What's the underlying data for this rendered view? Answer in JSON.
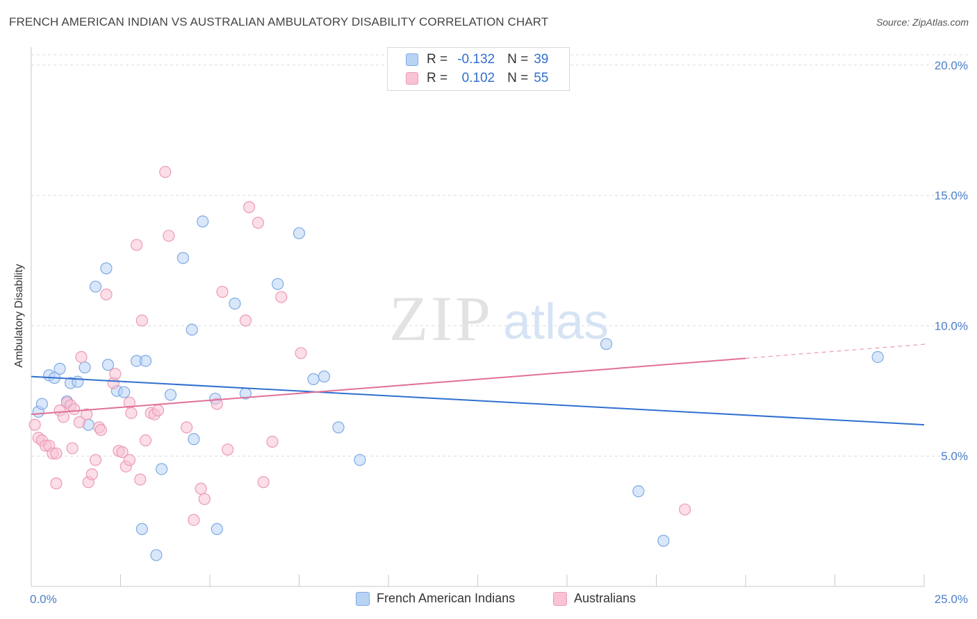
{
  "title": "FRENCH AMERICAN INDIAN VS AUSTRALIAN AMBULATORY DISABILITY CORRELATION CHART",
  "source": "Source: ZipAtlas.com",
  "watermark": {
    "zip": "ZIP",
    "atlas": "atlas"
  },
  "colors": {
    "blue": "#2f6fd0",
    "blue_fill": "#b9d3f5",
    "blue_stroke": "#7ea9e3",
    "pink": "#e07096",
    "pink_fill": "#f8c3d3",
    "pink_stroke": "#ec9ab4",
    "grid": "#dcdcdc",
    "axis_label": "#4a7fc7"
  },
  "legend": {
    "rows": [
      {
        "r_label": "R =",
        "r_value": "-0.132",
        "n_label": "N =",
        "n_value": "39"
      },
      {
        "r_label": "R =",
        "r_value": "0.102",
        "n_label": "N =",
        "n_value": "55"
      }
    ]
  },
  "bottom_legend": {
    "blue": "French American Indians",
    "pink": "Australians"
  },
  "chart_data": {
    "type": "scatter",
    "title": "FRENCH AMERICAN INDIAN VS AUSTRALIAN AMBULATORY DISABILITY CORRELATION CHART",
    "xlabel": "",
    "ylabel": "Ambulatory Disability",
    "xlim": [
      0,
      25
    ],
    "ylim": [
      0,
      20.5
    ],
    "x_tick_labels": [
      "0.0%",
      "25.0%"
    ],
    "y_ticks": [
      5,
      10,
      15,
      20
    ],
    "y_tick_labels": [
      "5.0%",
      "10.0%",
      "15.0%",
      "20.0%"
    ],
    "grid": true,
    "legend_position": "top-center",
    "series": [
      {
        "name": "French American Indians",
        "color": "#2f6fd0",
        "R": -0.132,
        "N": 39,
        "trend": {
          "x": [
            0,
            25
          ],
          "y": [
            8.05,
            6.2
          ]
        },
        "points": [
          [
            0.2,
            6.7
          ],
          [
            0.3,
            7.0
          ],
          [
            0.5,
            8.1
          ],
          [
            0.65,
            8.0
          ],
          [
            0.8,
            8.35
          ],
          [
            1.0,
            7.1
          ],
          [
            1.1,
            7.8
          ],
          [
            1.3,
            7.85
          ],
          [
            1.5,
            8.4
          ],
          [
            1.6,
            6.2
          ],
          [
            1.8,
            11.5
          ],
          [
            2.1,
            12.2
          ],
          [
            2.15,
            8.5
          ],
          [
            2.4,
            7.5
          ],
          [
            2.6,
            7.45
          ],
          [
            2.95,
            8.65
          ],
          [
            3.1,
            2.2
          ],
          [
            3.2,
            8.65
          ],
          [
            3.5,
            1.2
          ],
          [
            3.65,
            4.5
          ],
          [
            3.9,
            7.35
          ],
          [
            4.25,
            12.6
          ],
          [
            4.5,
            9.85
          ],
          [
            4.55,
            5.65
          ],
          [
            4.8,
            14.0
          ],
          [
            5.2,
            2.2
          ],
          [
            5.15,
            7.2
          ],
          [
            5.7,
            10.85
          ],
          [
            6.0,
            7.4
          ],
          [
            6.9,
            11.6
          ],
          [
            7.5,
            13.55
          ],
          [
            7.9,
            7.95
          ],
          [
            8.2,
            8.05
          ],
          [
            8.6,
            6.1
          ],
          [
            9.2,
            4.85
          ],
          [
            16.1,
            9.3
          ],
          [
            17.0,
            3.65
          ],
          [
            17.7,
            1.75
          ],
          [
            23.7,
            8.8
          ]
        ]
      },
      {
        "name": "Australians",
        "color": "#e07096",
        "R": 0.102,
        "N": 55,
        "trend": {
          "x": [
            0,
            20
          ],
          "y": [
            6.6,
            8.75
          ]
        },
        "trend_dashed": {
          "x": [
            20,
            25
          ],
          "y": [
            8.75,
            9.3
          ]
        },
        "points": [
          [
            0.1,
            6.2
          ],
          [
            0.2,
            5.7
          ],
          [
            0.3,
            5.6
          ],
          [
            0.4,
            5.4
          ],
          [
            0.5,
            5.4
          ],
          [
            0.6,
            5.1
          ],
          [
            0.7,
            5.1
          ],
          [
            0.7,
            3.95
          ],
          [
            0.8,
            6.75
          ],
          [
            0.9,
            6.5
          ],
          [
            1.0,
            7.05
          ],
          [
            1.1,
            6.95
          ],
          [
            1.2,
            6.8
          ],
          [
            1.15,
            5.3
          ],
          [
            1.35,
            6.3
          ],
          [
            1.4,
            8.8
          ],
          [
            1.55,
            6.6
          ],
          [
            1.6,
            4.0
          ],
          [
            1.7,
            4.3
          ],
          [
            1.8,
            4.85
          ],
          [
            1.9,
            6.1
          ],
          [
            1.95,
            6.0
          ],
          [
            2.1,
            11.2
          ],
          [
            2.3,
            7.8
          ],
          [
            2.35,
            8.15
          ],
          [
            2.45,
            5.2
          ],
          [
            2.55,
            5.15
          ],
          [
            2.65,
            4.6
          ],
          [
            2.75,
            4.85
          ],
          [
            2.75,
            7.05
          ],
          [
            2.8,
            6.65
          ],
          [
            2.95,
            13.1
          ],
          [
            3.05,
            4.1
          ],
          [
            3.1,
            10.2
          ],
          [
            3.2,
            5.6
          ],
          [
            3.35,
            6.65
          ],
          [
            3.45,
            6.6
          ],
          [
            3.55,
            6.75
          ],
          [
            3.75,
            15.9
          ],
          [
            3.85,
            13.45
          ],
          [
            4.35,
            6.1
          ],
          [
            4.55,
            2.55
          ],
          [
            4.75,
            3.75
          ],
          [
            4.85,
            3.35
          ],
          [
            5.2,
            7.0
          ],
          [
            5.35,
            11.3
          ],
          [
            5.5,
            5.25
          ],
          [
            6.0,
            10.2
          ],
          [
            6.1,
            14.55
          ],
          [
            6.35,
            13.95
          ],
          [
            6.5,
            4.0
          ],
          [
            6.75,
            5.55
          ],
          [
            7.0,
            11.1
          ],
          [
            7.55,
            8.95
          ],
          [
            18.3,
            2.95
          ]
        ]
      }
    ]
  }
}
